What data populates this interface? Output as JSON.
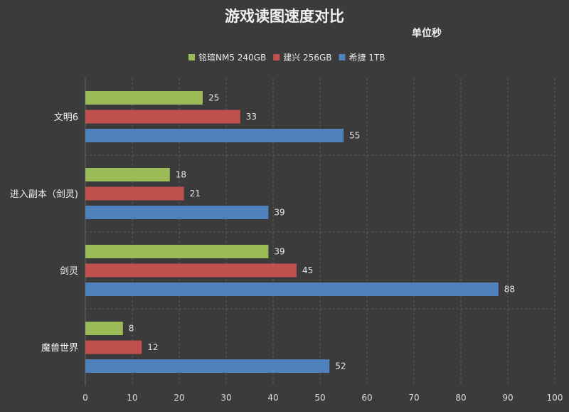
{
  "chart_data": {
    "type": "bar",
    "orientation": "horizontal",
    "title": "游戏读图速度对比",
    "subtitle": "单位秒",
    "categories": [
      "文明6",
      "进入副本（剑灵)",
      "剑灵",
      "魔兽世界"
    ],
    "series": [
      {
        "name": "铭瑄NM5 240GB",
        "color": "#9bbb59",
        "values": [
          25,
          18,
          39,
          8
        ]
      },
      {
        "name": "建兴 256GB",
        "color": "#c0504d",
        "values": [
          33,
          21,
          45,
          12
        ]
      },
      {
        "name": "希捷 1TB",
        "color": "#4f81bd",
        "values": [
          55,
          39,
          88,
          52
        ]
      }
    ],
    "xlim": [
      0,
      100
    ],
    "xticks": [
      0,
      10,
      20,
      30,
      40,
      50,
      60,
      70,
      80,
      90,
      100
    ],
    "grid": true,
    "legend_position": "top"
  }
}
